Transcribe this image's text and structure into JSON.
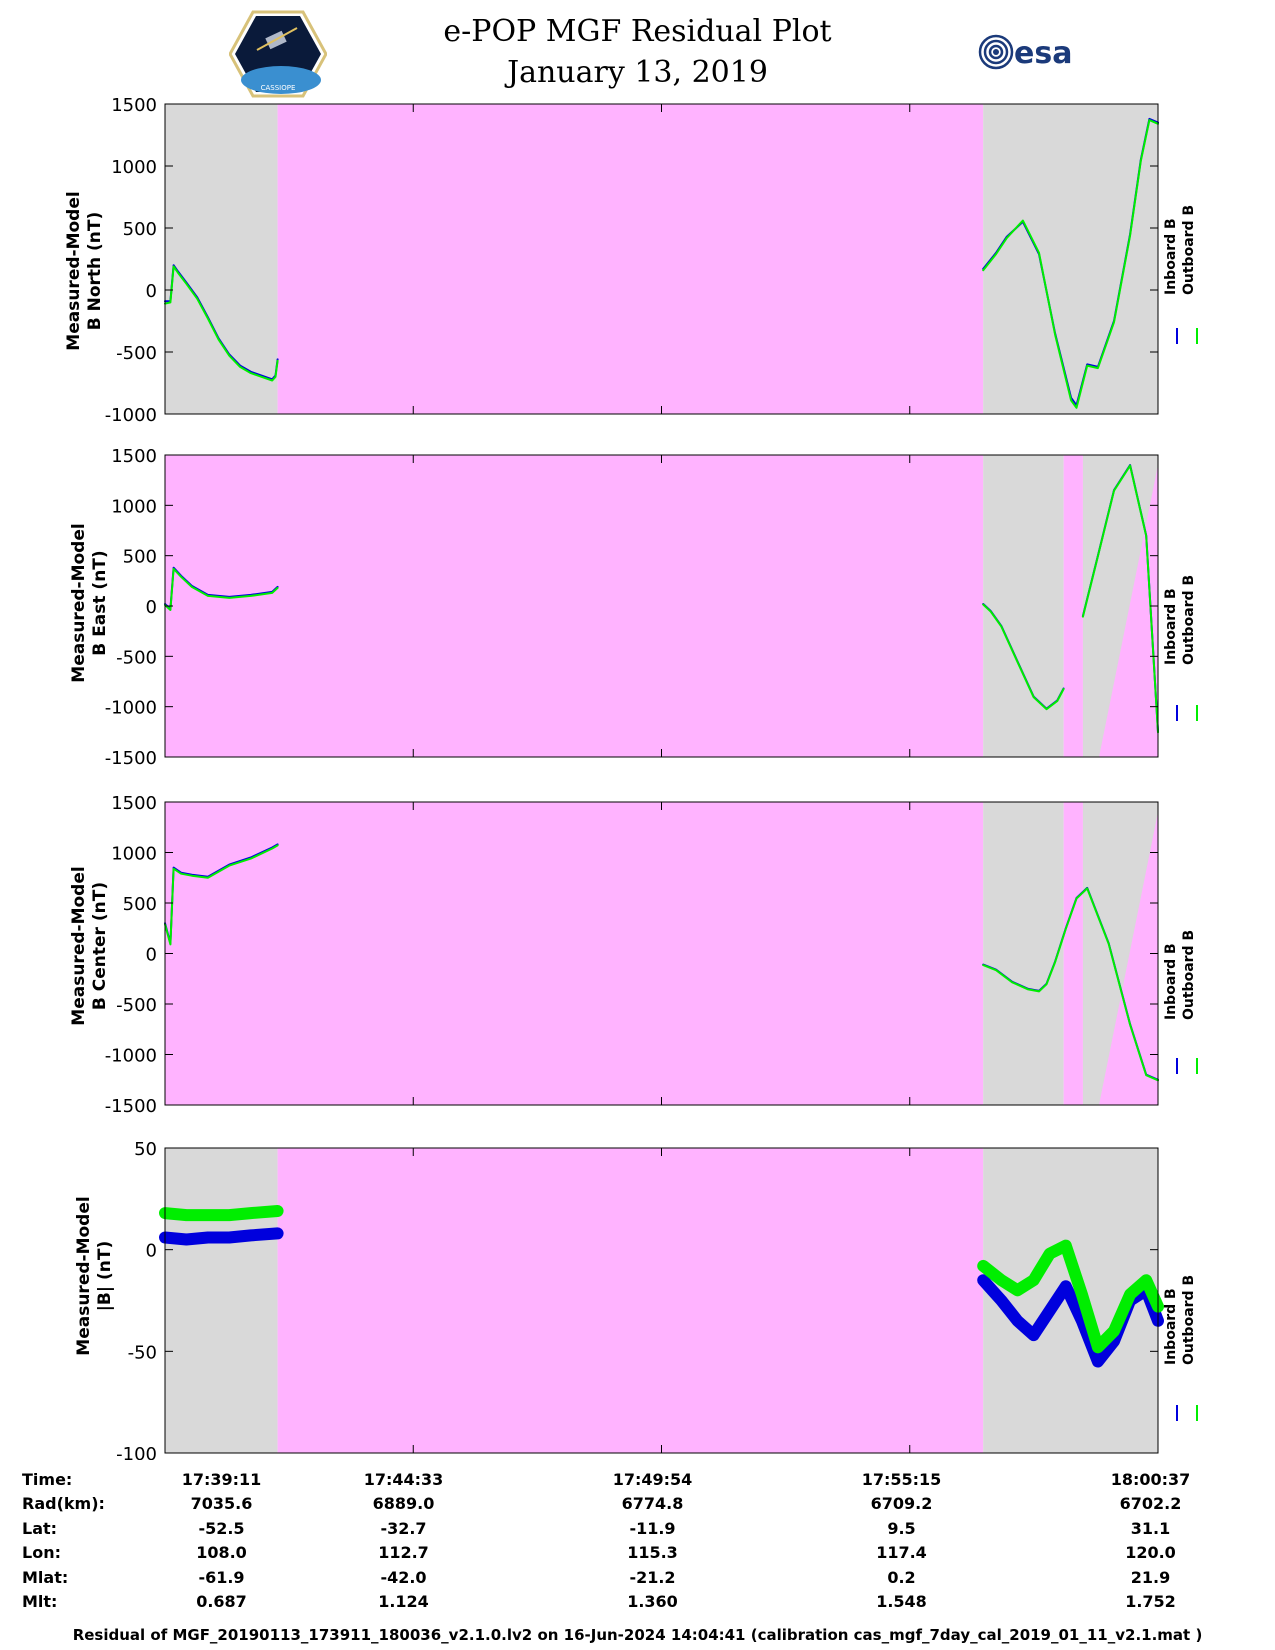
{
  "title": {
    "line1": "e-POP MGF Residual Plot",
    "line2": "January 13, 2019"
  },
  "logos": {
    "left": "e-POP CASSIOPE mission patch",
    "left_text": "CASSIOPE",
    "right_text": "esa"
  },
  "colors": {
    "inboard": "#0000dd",
    "outboard": "#00ee00",
    "background_gray": "#d9d9d9",
    "background_pink": "#ffb3ff"
  },
  "legend": {
    "inboard": "Inboard B",
    "outboard": "Outboard B"
  },
  "chart_data": [
    {
      "type": "line",
      "panel": "north",
      "ylabel": [
        "Measured-Model",
        "B North (nT)"
      ],
      "ylim": [
        -1000,
        1500
      ],
      "yticks": [
        "1500",
        "1000",
        "500",
        "0",
        "-500",
        "-1000"
      ],
      "xlim": [
        0,
        926
      ],
      "background_regions": [
        {
          "from": 0,
          "to": 105,
          "color": "gray"
        },
        {
          "from": 105,
          "to": 763,
          "color": "pink"
        },
        {
          "from": 763,
          "to": 926,
          "color": "gray"
        }
      ],
      "series": [
        {
          "name": "Inboard B",
          "segments": [
            {
              "x": [
                0,
                5,
                8,
                12,
                20,
                30,
                40,
                50,
                60,
                70,
                80,
                90,
                100,
                103,
                105
              ],
              "y": [
                -90,
                -90,
                200,
                150,
                60,
                -60,
                -220,
                -390,
                -520,
                -610,
                -660,
                -690,
                -720,
                -690,
                -560
              ]
            },
            {
              "x": [
                763,
                775,
                785,
                800,
                815,
                830,
                845,
                850,
                860,
                870,
                885,
                900,
                910,
                918,
                926
              ],
              "y": [
                170,
                300,
                430,
                550,
                290,
                -350,
                -870,
                -930,
                -600,
                -620,
                -250,
                450,
                1050,
                1380,
                1350
              ]
            }
          ]
        },
        {
          "name": "Outboard B",
          "segments": [
            {
              "x": [
                0,
                5,
                8,
                12,
                20,
                30,
                40,
                50,
                60,
                70,
                80,
                90,
                100,
                103,
                105
              ],
              "y": [
                -110,
                -100,
                190,
                140,
                50,
                -70,
                -230,
                -400,
                -530,
                -620,
                -670,
                -700,
                -730,
                -700,
                -570
              ]
            },
            {
              "x": [
                763,
                775,
                785,
                800,
                815,
                830,
                845,
                850,
                860,
                870,
                885,
                900,
                910,
                918,
                926
              ],
              "y": [
                160,
                290,
                420,
                560,
                300,
                -360,
                -890,
                -950,
                -610,
                -630,
                -260,
                440,
                1040,
                1370,
                1340
              ]
            }
          ]
        }
      ]
    },
    {
      "type": "line",
      "panel": "east",
      "ylabel": [
        "Measured-Model",
        "B East (nT)"
      ],
      "ylim": [
        -1500,
        1500
      ],
      "yticks": [
        "1500",
        "1000",
        "500",
        "0",
        "-500",
        "-1000",
        "-1500"
      ],
      "xlim": [
        0,
        926
      ],
      "background_regions": [
        {
          "from": 0,
          "to": 763,
          "color": "pink"
        },
        {
          "from": 763,
          "to": 838,
          "color": "gray"
        },
        {
          "from": 838,
          "to": 856,
          "color": "pink"
        },
        {
          "from": 856,
          "to": 926,
          "color": "gray"
        }
      ],
      "series": [
        {
          "name": "Inboard B",
          "segments": [
            {
              "x": [
                0,
                5,
                8,
                15,
                25,
                40,
                60,
                80,
                100,
                105
              ],
              "y": [
                20,
                -30,
                380,
                300,
                200,
                110,
                90,
                110,
                140,
                190
              ]
            },
            {
              "x": [
                763,
                770,
                780,
                795,
                810,
                822,
                832,
                838
              ],
              "y": [
                20,
                -50,
                -200,
                -550,
                -900,
                -1020,
                -940,
                -820
              ]
            },
            {
              "x": [
                856,
                870,
                885,
                900,
                915,
                926
              ],
              "y": [
                -100,
                500,
                1150,
                1400,
                700,
                -1250
              ]
            }
          ]
        },
        {
          "name": "Outboard B",
          "segments": [
            {
              "x": [
                0,
                5,
                8,
                15,
                25,
                40,
                60,
                80,
                100,
                105
              ],
              "y": [
                10,
                -40,
                370,
                290,
                190,
                100,
                80,
                100,
                130,
                180
              ]
            },
            {
              "x": [
                763,
                770,
                780,
                795,
                810,
                822,
                832,
                838
              ],
              "y": [
                15,
                -55,
                -205,
                -555,
                -905,
                -1025,
                -945,
                -825
              ]
            },
            {
              "x": [
                856,
                870,
                885,
                900,
                915,
                926
              ],
              "y": [
                -105,
                495,
                1145,
                1395,
                695,
                -1255
              ]
            }
          ]
        }
      ]
    },
    {
      "type": "line",
      "panel": "center",
      "ylabel": [
        "Measured-Model",
        "B Center (nT)"
      ],
      "ylim": [
        -1500,
        1500
      ],
      "yticks": [
        "1500",
        "1000",
        "500",
        "0",
        "-500",
        "-1000",
        "-1500"
      ],
      "xlim": [
        0,
        926
      ],
      "background_regions": [
        {
          "from": 0,
          "to": 763,
          "color": "pink"
        },
        {
          "from": 763,
          "to": 838,
          "color": "gray"
        },
        {
          "from": 838,
          "to": 856,
          "color": "pink"
        },
        {
          "from": 856,
          "to": 926,
          "color": "gray"
        }
      ],
      "series": [
        {
          "name": "Inboard B",
          "segments": [
            {
              "x": [
                0,
                5,
                8,
                15,
                25,
                40,
                60,
                80,
                100,
                105
              ],
              "y": [
                300,
                100,
                850,
                800,
                780,
                760,
                880,
                950,
                1050,
                1080
              ]
            },
            {
              "x": [
                763,
                775,
                790,
                805,
                815,
                822,
                830,
                840,
                850,
                860,
                880,
                900,
                915,
                926
              ],
              "y": [
                -110,
                -160,
                -280,
                -350,
                -370,
                -300,
                -80,
                250,
                550,
                650,
                100,
                -700,
                -1200,
                -1250
              ]
            }
          ]
        },
        {
          "name": "Outboard B",
          "segments": [
            {
              "x": [
                0,
                5,
                8,
                15,
                25,
                40,
                60,
                80,
                100,
                105
              ],
              "y": [
                290,
                90,
                840,
                790,
                770,
                750,
                870,
                940,
                1040,
                1070
              ]
            },
            {
              "x": [
                763,
                775,
                790,
                805,
                815,
                822,
                830,
                840,
                850,
                860,
                880,
                900,
                915,
                926
              ],
              "y": [
                -115,
                -165,
                -285,
                -355,
                -375,
                -305,
                -85,
                245,
                545,
                645,
                95,
                -705,
                -1205,
                -1255
              ]
            }
          ]
        }
      ]
    },
    {
      "type": "line",
      "panel": "magnitude",
      "ylabel": [
        "Measured-Model",
        "|B| (nT)"
      ],
      "ylim": [
        -100,
        50
      ],
      "yticks": [
        "50",
        "0",
        "-50",
        "-100"
      ],
      "xlim": [
        0,
        926
      ],
      "background_regions": [
        {
          "from": 0,
          "to": 105,
          "color": "gray"
        },
        {
          "from": 105,
          "to": 763,
          "color": "pink"
        },
        {
          "from": 763,
          "to": 926,
          "color": "gray"
        }
      ],
      "series": [
        {
          "name": "Inboard B",
          "band": 4,
          "segments": [
            {
              "x": [
                0,
                20,
                40,
                60,
                80,
                105
              ],
              "y": [
                6,
                5,
                6,
                6,
                7,
                8
              ]
            },
            {
              "x": [
                763,
                780,
                795,
                810,
                825,
                840,
                855,
                870,
                885,
                900,
                915,
                926
              ],
              "y": [
                -15,
                -25,
                -35,
                -42,
                -30,
                -18,
                -35,
                -55,
                -45,
                -25,
                -20,
                -35
              ]
            }
          ]
        },
        {
          "name": "Outboard B",
          "band": 4,
          "segments": [
            {
              "x": [
                0,
                20,
                40,
                60,
                80,
                105
              ],
              "y": [
                18,
                17,
                17,
                17,
                18,
                19
              ]
            },
            {
              "x": [
                763,
                780,
                795,
                810,
                825,
                840,
                855,
                870,
                885,
                900,
                915,
                926
              ],
              "y": [
                -8,
                -15,
                -20,
                -15,
                -2,
                2,
                -22,
                -48,
                -40,
                -22,
                -15,
                -28
              ]
            }
          ]
        }
      ]
    }
  ],
  "orbit_table": {
    "rows": [
      {
        "label": "Time:",
        "values": [
          "17:39:11",
          "17:44:33",
          "17:49:54",
          "17:55:15",
          "18:00:37"
        ]
      },
      {
        "label": "Rad(km):",
        "values": [
          "7035.6",
          "6889.0",
          "6774.8",
          "6709.2",
          "6702.2"
        ]
      },
      {
        "label": "Lat:",
        "values": [
          "-52.5",
          "-32.7",
          "-11.9",
          "9.5",
          "31.1"
        ]
      },
      {
        "label": "Lon:",
        "values": [
          "108.0",
          "112.7",
          "115.3",
          "117.4",
          "120.0"
        ]
      },
      {
        "label": "Mlat:",
        "values": [
          "-61.9",
          "-42.0",
          "-21.2",
          "0.2",
          "21.9"
        ]
      },
      {
        "label": "Mlt:",
        "values": [
          "0.687",
          "1.124",
          "1.360",
          "1.548",
          "1.752"
        ]
      }
    ]
  },
  "footer": "Residual of MGF_20190113_173911_180036_v2.1.0.lv2 on 16-Jun-2024 14:04:41 (calibration cas_mgf_7day_cal_2019_01_11_v2.1.mat )"
}
